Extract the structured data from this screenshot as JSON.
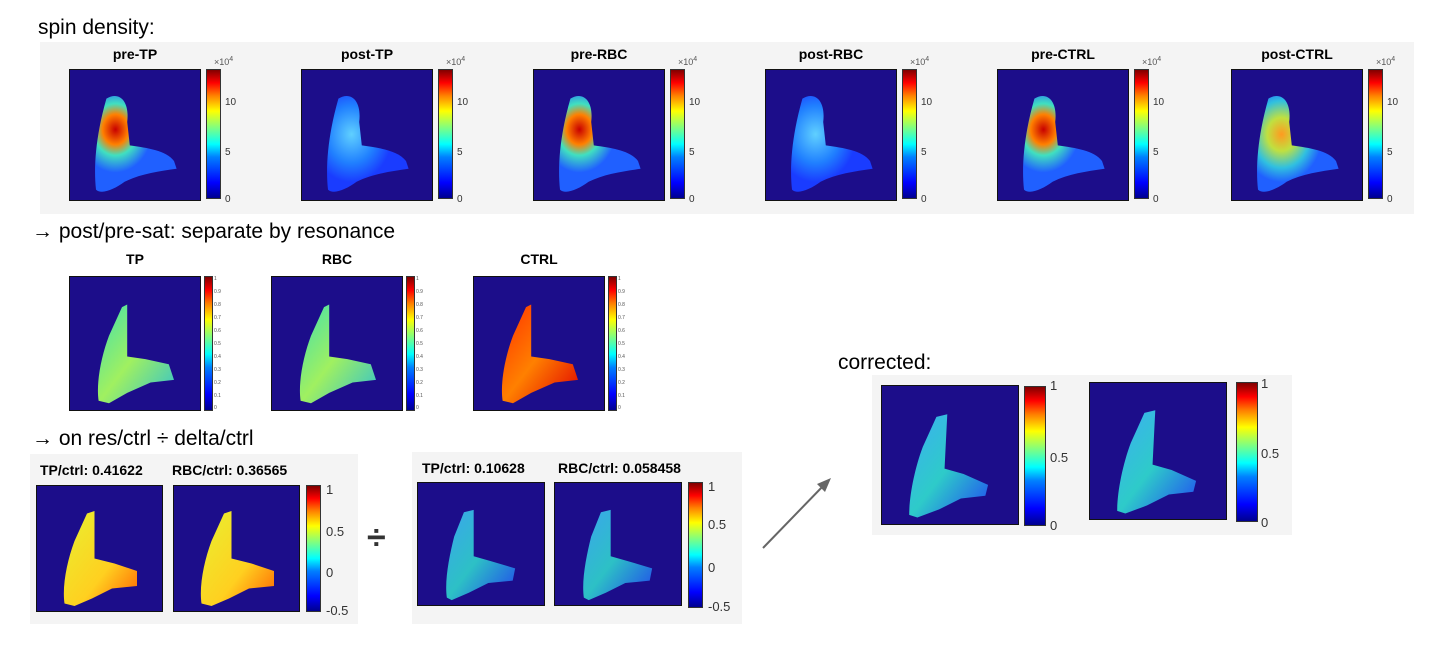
{
  "sections": {
    "spin_density": "spin density:",
    "post_pre": "→ post/pre-sat: separate by resonance",
    "on_res": "→ on res/ctrl ÷ delta/ctrl",
    "corrected": "corrected:"
  },
  "row1": {
    "titles": [
      "pre-TP",
      "post-TP",
      "pre-RBC",
      "post-RBC",
      "pre-CTRL",
      "post-CTRL"
    ],
    "exponent_base": "×10",
    "exponent_power": "4",
    "ticks": [
      "10",
      "5",
      "0"
    ]
  },
  "row2": {
    "titles": [
      "TP",
      "RBC",
      "CTRL"
    ],
    "ticks": [
      "1",
      "0.9",
      "0.8",
      "0.7",
      "0.6",
      "0.5",
      "0.4",
      "0.3",
      "0.2",
      "0.1",
      "0"
    ]
  },
  "row3": {
    "left": [
      {
        "label": "TP/ctrl: 0.41622"
      },
      {
        "label": "RBC/ctrl: 0.36565"
      }
    ],
    "right": [
      {
        "label": "TP/ctrl: 0.10628"
      },
      {
        "label": "RBC/ctrl: 0.058458"
      }
    ],
    "ticks": [
      "1",
      "0.5",
      "0",
      "-0.5"
    ],
    "divide_symbol": "÷"
  },
  "corrected": {
    "ticks": [
      "1",
      "0.5",
      "0"
    ]
  },
  "colors": {
    "background": "#1c0d8a",
    "arrow": "#666666"
  }
}
